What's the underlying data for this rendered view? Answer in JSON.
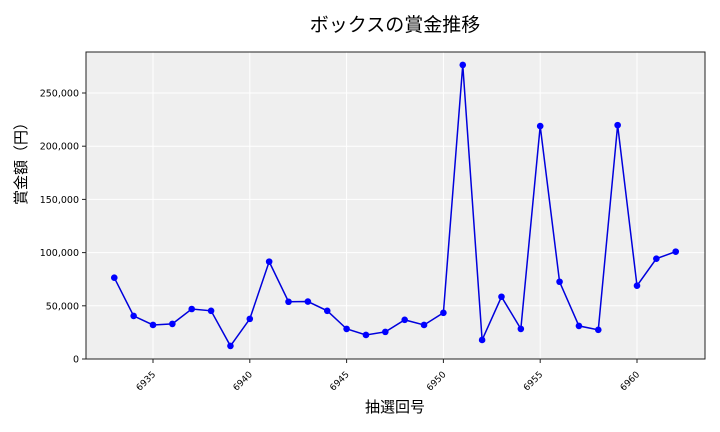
{
  "chart_data": {
    "type": "line",
    "title": "ボックスの賞金推移",
    "xlabel": "抽選回号",
    "ylabel": "賞金額（円）",
    "x": [
      6933,
      6934,
      6935,
      6936,
      6937,
      6938,
      6939,
      6940,
      6941,
      6942,
      6943,
      6944,
      6945,
      6946,
      6947,
      6948,
      6949,
      6950,
      6951,
      6952,
      6953,
      6954,
      6955,
      6956,
      6957,
      6958,
      6959,
      6960,
      6961,
      6962
    ],
    "series": [
      {
        "name": "ボックス",
        "color": "#0000ff",
        "values": [
          76400,
          40500,
          32000,
          33000,
          47000,
          45300,
          12300,
          37700,
          91500,
          53800,
          54000,
          45300,
          28300,
          22600,
          25500,
          36800,
          32000,
          43400,
          276400,
          17900,
          58500,
          28300,
          218900,
          72600,
          31100,
          27400,
          219800,
          68900,
          94300,
          100900
        ]
      }
    ],
    "xticks": [
      6935,
      6940,
      6945,
      6950,
      6955,
      6960
    ],
    "yticks": [
      0,
      50000,
      100000,
      150000,
      200000,
      250000
    ],
    "ytick_labels": [
      "0",
      "50,000",
      "100,000",
      "150,000",
      "200,000",
      "250,000"
    ],
    "xlim": [
      6931,
      6963.3
    ],
    "ylim": [
      0,
      290000
    ],
    "grid": true,
    "legend": false
  }
}
